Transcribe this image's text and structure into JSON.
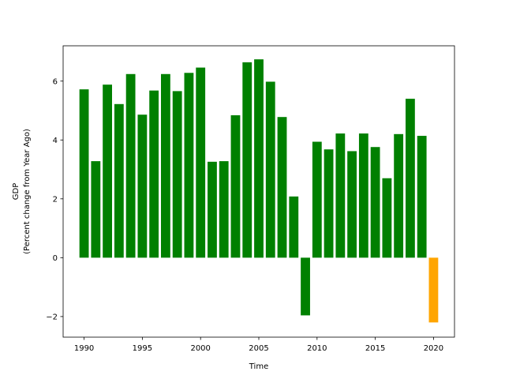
{
  "chart_data": {
    "type": "bar",
    "title": "",
    "xlabel": "Time",
    "ylabel": [
      "GDP",
      "(Percent change from Year Ago)"
    ],
    "xlim": [
      1988.2,
      2021.8
    ],
    "ylim": [
      -2.7,
      7.2
    ],
    "xticks": [
      1990,
      1995,
      2000,
      2005,
      2010,
      2015,
      2020
    ],
    "xtick_labels": [
      "1990",
      "1995",
      "2000",
      "2005",
      "2010",
      "2015",
      "2020"
    ],
    "yticks": [
      -2,
      0,
      2,
      4,
      6
    ],
    "ytick_labels": [
      "−2",
      "0",
      "2",
      "4",
      "6"
    ],
    "grid": false,
    "legend": "none",
    "colors": {
      "actual": "#008000",
      "forecast": "#ffa500"
    },
    "bars": [
      {
        "x": 1990,
        "value": 5.72,
        "kind": "actual"
      },
      {
        "x": 1991,
        "value": 3.28,
        "kind": "actual"
      },
      {
        "x": 1992,
        "value": 5.88,
        "kind": "actual"
      },
      {
        "x": 1993,
        "value": 5.22,
        "kind": "actual"
      },
      {
        "x": 1994,
        "value": 6.24,
        "kind": "actual"
      },
      {
        "x": 1995,
        "value": 4.86,
        "kind": "actual"
      },
      {
        "x": 1996,
        "value": 5.68,
        "kind": "actual"
      },
      {
        "x": 1997,
        "value": 6.24,
        "kind": "actual"
      },
      {
        "x": 1998,
        "value": 5.66,
        "kind": "actual"
      },
      {
        "x": 1999,
        "value": 6.28,
        "kind": "actual"
      },
      {
        "x": 2000,
        "value": 6.46,
        "kind": "actual"
      },
      {
        "x": 2001,
        "value": 3.26,
        "kind": "actual"
      },
      {
        "x": 2002,
        "value": 3.28,
        "kind": "actual"
      },
      {
        "x": 2003,
        "value": 4.84,
        "kind": "actual"
      },
      {
        "x": 2004,
        "value": 6.64,
        "kind": "actual"
      },
      {
        "x": 2005,
        "value": 6.74,
        "kind": "actual"
      },
      {
        "x": 2006,
        "value": 5.98,
        "kind": "actual"
      },
      {
        "x": 2007,
        "value": 4.78,
        "kind": "actual"
      },
      {
        "x": 2008,
        "value": 2.08,
        "kind": "actual"
      },
      {
        "x": 2009,
        "value": -1.96,
        "kind": "actual"
      },
      {
        "x": 2010,
        "value": 3.94,
        "kind": "actual"
      },
      {
        "x": 2011,
        "value": 3.68,
        "kind": "actual"
      },
      {
        "x": 2012,
        "value": 4.22,
        "kind": "actual"
      },
      {
        "x": 2013,
        "value": 3.62,
        "kind": "actual"
      },
      {
        "x": 2014,
        "value": 4.22,
        "kind": "actual"
      },
      {
        "x": 2015,
        "value": 3.76,
        "kind": "actual"
      },
      {
        "x": 2016,
        "value": 2.7,
        "kind": "actual"
      },
      {
        "x": 2017,
        "value": 4.2,
        "kind": "actual"
      },
      {
        "x": 2018,
        "value": 5.4,
        "kind": "actual"
      },
      {
        "x": 2019,
        "value": 4.14,
        "kind": "actual"
      },
      {
        "x": 2020,
        "value": -2.2,
        "kind": "forecast"
      }
    ]
  }
}
